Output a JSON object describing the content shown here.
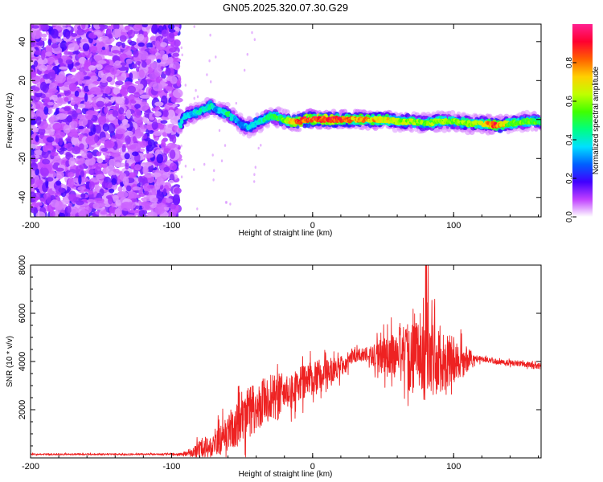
{
  "chart_data": [
    {
      "type": "heatmap",
      "title": "GN05.2025.320.07.30.G29",
      "xlabel": "Height of straight line (km)",
      "ylabel": "Frequency (Hz)",
      "xlim": [
        -200,
        162
      ],
      "ylim": [
        -50,
        49
      ],
      "xticks": [
        -200,
        -100,
        0,
        100
      ],
      "xtick_labels": [
        "-200",
        "-100",
        "0",
        "100"
      ],
      "yticks": [
        -40,
        -20,
        0,
        20,
        40
      ],
      "ytick_labels": [
        "-40",
        "-20",
        "0",
        "20",
        "40"
      ],
      "colorbar": {
        "label": "Normalized spectral amplitude",
        "range": [
          0,
          1
        ],
        "ticks": [
          0.0,
          0.2,
          0.4,
          0.6,
          0.8
        ],
        "tick_labels": [
          "0.0",
          "0.2",
          "0.4",
          "0.6",
          "0.8"
        ],
        "colors": [
          "#ffffff",
          "#c040ff",
          "#4000ff",
          "#0060ff",
          "#00e0ff",
          "#00ff80",
          "#40ff00",
          "#c0ff00",
          "#ffd000",
          "#ff6000",
          "#ff0030",
          "#ff2090"
        ]
      },
      "noise_region_x": [
        -200,
        -95
      ],
      "ridge": {
        "x": [
          -94,
          -90,
          -85,
          -80,
          -75,
          -72,
          -68,
          -64,
          -60,
          -55,
          -50,
          -45,
          -40,
          -35,
          -30,
          -25,
          -20,
          -15,
          -10,
          -5,
          0,
          10,
          20,
          30,
          40,
          50,
          60,
          70,
          80,
          90,
          100,
          110,
          120,
          130,
          140,
          150,
          162
        ],
        "freq": [
          -3,
          2,
          3,
          4,
          6,
          7,
          5,
          4,
          3,
          0,
          -3,
          -4,
          -2,
          0,
          2,
          1,
          0,
          -1,
          -1,
          0,
          0,
          0,
          0,
          0,
          0,
          0,
          -1,
          -1,
          -2,
          -1,
          -1,
          -2,
          -2,
          -3,
          -2,
          -1,
          -1
        ],
        "amplitude": [
          0.4,
          0.4,
          0.35,
          0.45,
          0.4,
          0.5,
          0.3,
          0.45,
          0.5,
          0.35,
          0.3,
          0.4,
          0.4,
          0.45,
          0.5,
          0.55,
          0.6,
          0.75,
          0.9,
          0.95,
          0.95,
          0.95,
          0.95,
          0.8,
          0.8,
          0.75,
          0.7,
          0.65,
          0.6,
          0.65,
          0.6,
          0.65,
          0.7,
          0.9,
          0.6,
          0.6,
          0.55
        ]
      }
    },
    {
      "type": "line",
      "xlabel": "Height of straight line (km)",
      "ylabel": "SNR (10 * v/v)",
      "xlim": [
        -200,
        162
      ],
      "ylim": [
        0,
        8000
      ],
      "xticks": [
        -200,
        -100,
        0,
        100
      ],
      "xtick_labels": [
        "-200",
        "-100",
        "0",
        "100"
      ],
      "yticks": [
        2000,
        4000,
        6000,
        8000
      ],
      "ytick_labels": [
        "2000",
        "4000",
        "6000",
        "8000"
      ],
      "color": "#ee2222",
      "series": [
        {
          "name": "SNR",
          "envelope": {
            "x": [
              -200,
              -150,
              -100,
              -92,
              -85,
              -80,
              -75,
              -70,
              -65,
              -60,
              -55,
              -50,
              -45,
              -40,
              -35,
              -30,
              -25,
              -20,
              -15,
              -10,
              -5,
              0,
              5,
              10,
              15,
              20,
              25,
              30,
              35,
              40,
              45,
              50,
              55,
              60,
              65,
              70,
              75,
              80,
              85,
              90,
              95,
              100,
              105,
              110,
              115,
              120,
              130,
              140,
              150,
              162
            ],
            "base": [
              150,
              150,
              150,
              150,
              200,
              400,
              500,
              600,
              800,
              1000,
              1300,
              1600,
              1900,
              2100,
              2300,
              2500,
              2600,
              2700,
              2800,
              3000,
              3200,
              3300,
              3500,
              3600,
              3700,
              3800,
              4000,
              4200,
              4300,
              4300,
              4200,
              4200,
              4200,
              4300,
              4300,
              4200,
              4100,
              4000,
              4000,
              4000,
              4000,
              4000,
              4000,
              4100,
              4100,
              4100,
              4000,
              3950,
              3900,
              3800
            ],
            "jitter": [
              60,
              60,
              60,
              100,
              300,
              700,
              900,
              1000,
              1200,
              1300,
              1500,
              1700,
              1900,
              1900,
              1800,
              1700,
              1600,
              1500,
              1400,
              1400,
              1300,
              1200,
              1100,
              1000,
              900,
              800,
              700,
              600,
              500,
              600,
              1000,
              1500,
              1800,
              2000,
              2200,
              2500,
              2800,
              3000,
              2800,
              2500,
              2200,
              1800,
              1400,
              900,
              300,
              200,
              200,
              200,
              200,
              200
            ]
          }
        }
      ]
    }
  ]
}
